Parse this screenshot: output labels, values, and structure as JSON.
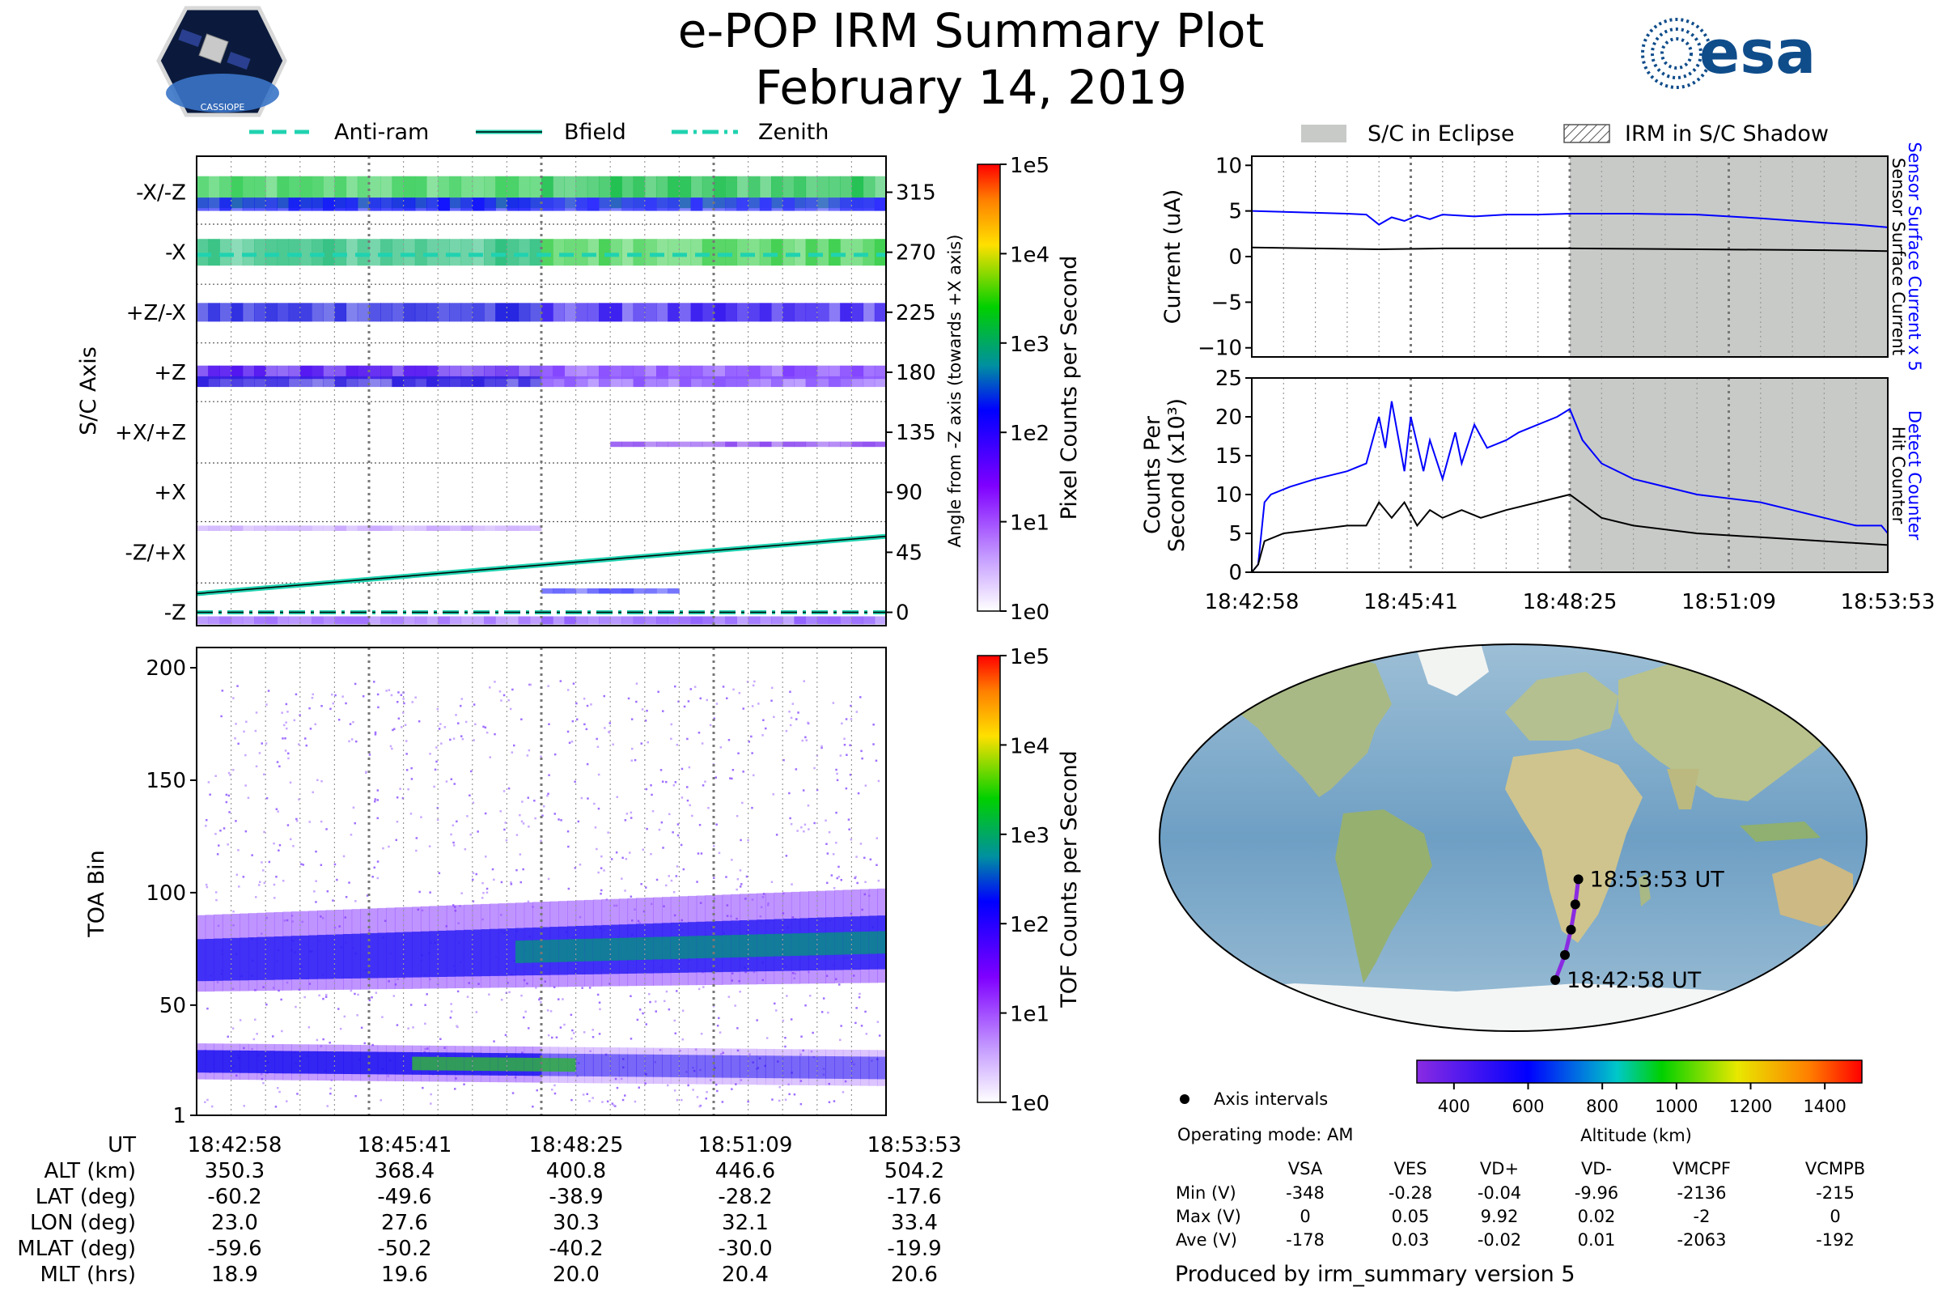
{
  "title": {
    "line1": "e-POP IRM Summary Plot",
    "line2": "February 14, 2019"
  },
  "logos": {
    "cassiope_text": "CASSIOPE",
    "esa_text": "esa"
  },
  "legend_top_left": [
    {
      "label": "Anti-ram",
      "style": "dashed"
    },
    {
      "label": "Bfield",
      "style": "solid"
    },
    {
      "label": "Zenith",
      "style": "dashdot"
    }
  ],
  "legend_top_right": [
    {
      "label": "S/C in Eclipse",
      "style": "gray"
    },
    {
      "label": "IRM in S/C Shadow",
      "style": "hatch"
    }
  ],
  "colors": {
    "anti_ram": "#20d2b0",
    "bfield": "#20d2b0",
    "blue": "#0000ff",
    "black": "#000000",
    "eclipse": "#c8cac8"
  },
  "chart_data": [
    {
      "type": "heatmap",
      "name": "pixel_counts",
      "ylabel": "S/C Axis",
      "y2label": "Angle from -Z axis (towards +X axis)",
      "axis_labels": [
        "-X/-Z",
        "-X",
        "+Z/-X",
        "+Z",
        "+X/+Z",
        "+X",
        "-Z/+X",
        "-Z"
      ],
      "angle_ticks": [
        "315",
        "270",
        "225",
        "180",
        "135",
        "90",
        "45",
        "0"
      ],
      "ylim": [
        -10,
        342
      ],
      "colorbar": {
        "label": "Pixel Counts per Second",
        "ticks": [
          "1e0",
          "1e1",
          "1e2",
          "1e3",
          "1e4",
          "1e5"
        ]
      },
      "bfield": {
        "angle_start": 14,
        "angle_end": 57
      },
      "anti_ram_angle": 268,
      "zenith_angle": 0
    },
    {
      "type": "heatmap",
      "name": "tof_counts",
      "ylabel": "TOA Bin",
      "yticks": [
        "1",
        "50",
        "100",
        "150",
        "200"
      ],
      "ylim": [
        1,
        209
      ],
      "colorbar": {
        "label": "TOF Counts per Second",
        "ticks": [
          "1e0",
          "1e1",
          "1e2",
          "1e3",
          "1e4",
          "1e5"
        ]
      },
      "bands": [
        {
          "center_start": 70,
          "center_end": 78
        },
        {
          "center_start": 25,
          "center_end": 22
        }
      ]
    },
    {
      "type": "line",
      "name": "current",
      "ylabel": "Current (uA)",
      "y2label_blue": "Sensor Surface Current x 5",
      "y2label_black": "Sensor Surface Current",
      "ylim": [
        -11,
        11
      ],
      "yticks": [
        "10",
        "5",
        "0",
        "−5",
        "−10"
      ],
      "eclipse_start_frac": 0.5,
      "series": [
        {
          "name": "Sensor Surface Current x 5",
          "color": "blue",
          "t": [
            0,
            0.05,
            0.1,
            0.15,
            0.18,
            0.2,
            0.22,
            0.24,
            0.26,
            0.28,
            0.3,
            0.35,
            0.4,
            0.45,
            0.5,
            0.6,
            0.7,
            0.8,
            0.9,
            0.95,
            1.0
          ],
          "values": [
            5.0,
            4.9,
            4.8,
            4.7,
            4.6,
            3.5,
            4.3,
            3.9,
            4.5,
            4.1,
            4.6,
            4.4,
            4.6,
            4.6,
            4.7,
            4.7,
            4.6,
            4.2,
            3.7,
            3.5,
            3.2
          ]
        },
        {
          "name": "Sensor Surface Current",
          "color": "black",
          "t": [
            0,
            0.2,
            0.3,
            0.5,
            0.7,
            0.9,
            1.0
          ],
          "values": [
            1.0,
            0.8,
            0.9,
            0.9,
            0.8,
            0.7,
            0.6
          ]
        }
      ]
    },
    {
      "type": "line",
      "name": "counts",
      "ylabel_line1": "Counts Per",
      "ylabel_line2": "Second (x10³)",
      "y2label_blue": "Detect Counter",
      "y2label_black": "Hit Counter",
      "ylim": [
        0,
        25
      ],
      "yticks": [
        "25",
        "20",
        "15",
        "10",
        "5",
        "0"
      ],
      "xticks": [
        "18:42:58",
        "18:45:41",
        "18:48:25",
        "18:51:09",
        "18:53:53"
      ],
      "eclipse_start_frac": 0.5,
      "series": [
        {
          "name": "Detect Counter",
          "color": "blue",
          "t": [
            0,
            0.01,
            0.02,
            0.03,
            0.06,
            0.1,
            0.15,
            0.18,
            0.2,
            0.21,
            0.22,
            0.24,
            0.25,
            0.27,
            0.28,
            0.3,
            0.32,
            0.33,
            0.35,
            0.37,
            0.4,
            0.42,
            0.45,
            0.48,
            0.5,
            0.52,
            0.55,
            0.6,
            0.7,
            0.8,
            0.85,
            0.9,
            0.95,
            0.99,
            1.0
          ],
          "values": [
            0,
            1,
            9,
            10,
            11,
            12,
            13,
            14,
            20,
            16,
            22,
            13,
            20,
            13,
            17,
            12,
            18,
            14,
            19,
            16,
            17,
            18,
            19,
            20,
            21,
            17,
            14,
            12,
            10,
            9,
            8,
            7,
            6,
            6,
            5
          ]
        },
        {
          "name": "Hit Counter",
          "color": "black",
          "t": [
            0,
            0.01,
            0.02,
            0.05,
            0.1,
            0.15,
            0.18,
            0.2,
            0.22,
            0.24,
            0.26,
            0.28,
            0.3,
            0.33,
            0.36,
            0.4,
            0.45,
            0.5,
            0.55,
            0.6,
            0.7,
            0.8,
            0.9,
            1.0
          ],
          "values": [
            0,
            1,
            4,
            5,
            5.5,
            6,
            6,
            9,
            7,
            9,
            6,
            8,
            7,
            8,
            7,
            8,
            9,
            10,
            7,
            6,
            5,
            4.5,
            4,
            3.5
          ]
        }
      ]
    },
    {
      "type": "scatter",
      "name": "orbit_map",
      "track": [
        {
          "lon": 23.0,
          "lat": -60.2
        },
        {
          "lon": 27.6,
          "lat": -49.6
        },
        {
          "lon": 30.3,
          "lat": -38.9
        },
        {
          "lon": 32.1,
          "lat": -28.2
        },
        {
          "lon": 33.4,
          "lat": -17.6
        }
      ],
      "start_label": "18:42:58 UT",
      "end_label": "18:53:53 UT",
      "colorbar": {
        "label": "Altitude (km)",
        "range": [
          300,
          1500
        ],
        "ticks": [
          "400",
          "600",
          "800",
          "1000",
          "1200",
          "1400"
        ]
      }
    }
  ],
  "time_ticks": [
    "18:42:58",
    "18:45:41",
    "18:48:25",
    "18:51:09",
    "18:53:53"
  ],
  "ephemeris": {
    "rows": [
      {
        "label": "UT",
        "values": [
          "18:42:58",
          "18:45:41",
          "18:48:25",
          "18:51:09",
          "18:53:53"
        ]
      },
      {
        "label": "ALT (km)",
        "values": [
          "350.3",
          "368.4",
          "400.8",
          "446.6",
          "504.2"
        ]
      },
      {
        "label": "LAT (deg)",
        "values": [
          "-60.2",
          "-49.6",
          "-38.9",
          "-28.2",
          "-17.6"
        ]
      },
      {
        "label": "LON (deg)",
        "values": [
          "23.0",
          "27.6",
          "30.3",
          "32.1",
          "33.4"
        ]
      },
      {
        "label": "MLAT (deg)",
        "values": [
          "-59.6",
          "-50.2",
          "-40.2",
          "-30.0",
          "-19.9"
        ]
      },
      {
        "label": "MLT (hrs)",
        "values": [
          "18.9",
          "19.6",
          "20.0",
          "20.4",
          "20.6"
        ]
      }
    ]
  },
  "map_legend": {
    "axis_intervals": "Axis intervals",
    "operating_mode": "Operating mode: AM"
  },
  "voltage_table": {
    "headers": [
      "VSA",
      "VES",
      "VD+",
      "VD-",
      "VMCPF",
      "VCMPB"
    ],
    "rows": [
      {
        "label": "Min (V)",
        "values": [
          "-348",
          "-0.28",
          "-0.04",
          "-9.96",
          "-2136",
          "-215"
        ]
      },
      {
        "label": "Max (V)",
        "values": [
          "0",
          "0.05",
          "9.92",
          "0.02",
          "-2",
          "0"
        ]
      },
      {
        "label": "Ave (V)",
        "values": [
          "-178",
          "0.03",
          "-0.02",
          "0.01",
          "-2063",
          "-192"
        ]
      }
    ]
  },
  "footer": "Produced by irm_summary version 5"
}
